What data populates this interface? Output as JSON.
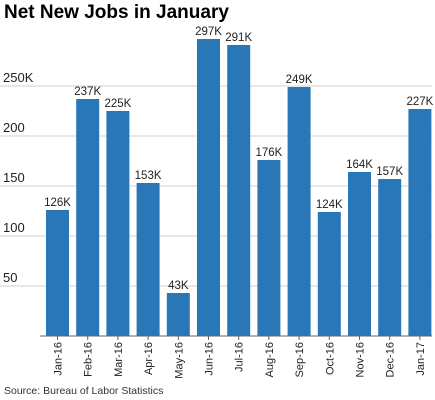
{
  "title": "Net New Jobs in January",
  "source": "Source: Bureau of Labor Statistics",
  "colors": {
    "bar": "#2a77b8",
    "grid": "#d0d0d0",
    "axis": "#666666",
    "text": "#222222"
  },
  "chart_data": {
    "type": "bar",
    "title": "Net New Jobs in January",
    "xlabel": "",
    "ylabel": "",
    "categories": [
      "Jan-16",
      "Feb-16",
      "Mar-16",
      "Apr-16",
      "May-16",
      "Jun-16",
      "Jul-16",
      "Aug-16",
      "Sep-16",
      "Oct-16",
      "Nov-16",
      "Dec-16",
      "Jan-17"
    ],
    "values": [
      126,
      237,
      225,
      153,
      43,
      297,
      291,
      176,
      249,
      124,
      164,
      157,
      227
    ],
    "data_labels": [
      "126K",
      "237K",
      "225K",
      "153K",
      "43K",
      "297K",
      "291K",
      "176K",
      "249K",
      "124K",
      "164K",
      "157K",
      "227K"
    ],
    "yticks": [
      50,
      100,
      150,
      200,
      250
    ],
    "ytick_labels": [
      "50",
      "100",
      "150",
      "200",
      "250K"
    ],
    "ylim": [
      0,
      300
    ],
    "grid": true,
    "legend": "none"
  }
}
